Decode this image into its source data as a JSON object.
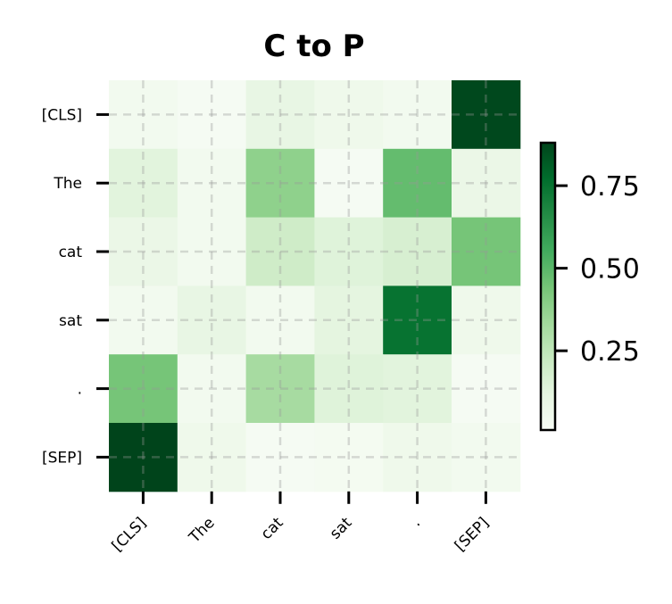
{
  "chart_data": {
    "type": "heatmap",
    "title": "C to P",
    "x_labels": [
      "[CLS]",
      "The",
      "cat",
      "sat",
      ".",
      "[SEP]"
    ],
    "y_labels": [
      "[CLS]",
      "The",
      "cat",
      "sat",
      ".",
      "[SEP]"
    ],
    "values": [
      [
        0.04,
        0.02,
        0.1,
        0.06,
        0.04,
        0.87
      ],
      [
        0.13,
        0.04,
        0.38,
        0.02,
        0.48,
        0.08
      ],
      [
        0.08,
        0.04,
        0.2,
        0.14,
        0.17,
        0.44
      ],
      [
        0.04,
        0.1,
        0.04,
        0.12,
        0.75,
        0.06
      ],
      [
        0.44,
        0.04,
        0.32,
        0.14,
        0.13,
        0.02
      ],
      [
        0.88,
        0.06,
        0.02,
        0.03,
        0.06,
        0.04
      ]
    ],
    "colormap": "Greens",
    "vmin": 0.01,
    "vmax": 0.88,
    "colorbar_ticks": [
      0.25,
      0.5,
      0.75
    ],
    "colorbar_tick_labels": [
      "0.25",
      "0.50",
      "0.75"
    ],
    "grid": true
  }
}
